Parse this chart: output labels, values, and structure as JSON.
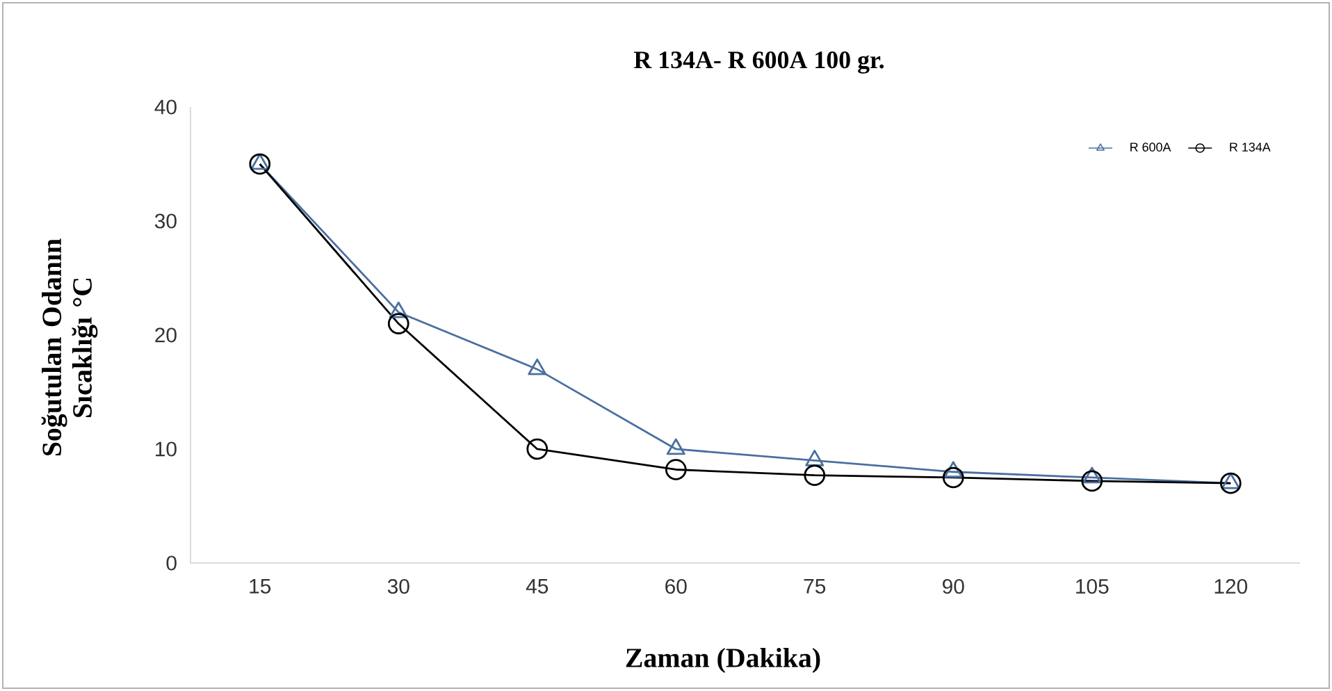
{
  "chart_data": {
    "type": "line",
    "title": "R 134A- R 600A 100 gr.",
    "xlabel": "Zaman (Dakika)",
    "ylabel": "Soğutulan Odanın Sıcaklığı °C",
    "categories": [
      "15",
      "30",
      "45",
      "60",
      "75",
      "90",
      "105",
      "120"
    ],
    "series": [
      {
        "name": "R 600A",
        "color": "#4a6fa0",
        "marker": "triangle",
        "values": [
          35,
          22,
          17,
          10,
          9,
          8,
          7.5,
          7
        ]
      },
      {
        "name": "R 134A",
        "color": "#000000",
        "marker": "circle",
        "values": [
          35,
          21,
          10,
          8.2,
          7.7,
          7.5,
          7.2,
          7
        ]
      }
    ],
    "ylim": [
      0,
      40
    ],
    "yticks": [
      0,
      10,
      20,
      30,
      40
    ],
    "grid": false,
    "legend": "top right",
    "line_style": "solid"
  }
}
